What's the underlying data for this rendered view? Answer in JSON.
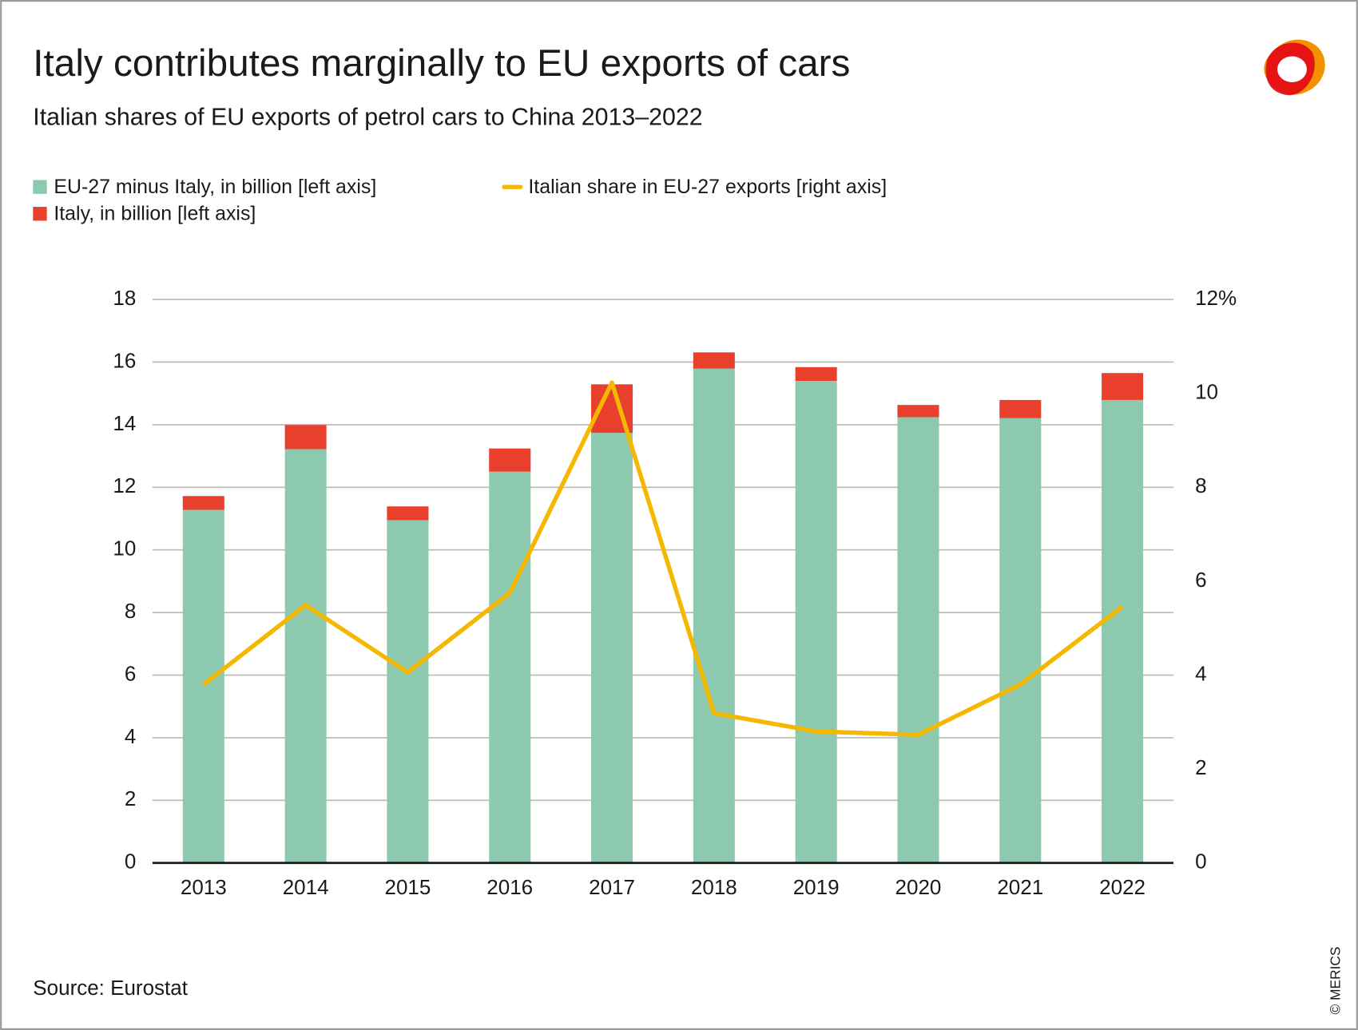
{
  "chart_data": {
    "type": "bar",
    "title": "Italy contributes marginally to EU exports of cars",
    "subtitle": "Italian shares of EU exports of petrol cars to China 2013–2022",
    "source": "Source: Eurostat",
    "copyright": "© MERICS",
    "stacked": true,
    "grid": true,
    "categories": [
      "2013",
      "2014",
      "2015",
      "2016",
      "2017",
      "2018",
      "2019",
      "2020",
      "2021",
      "2022"
    ],
    "series": [
      {
        "name": "EU-27 minus Italy, in billion [left axis]",
        "type": "bar",
        "color": "#8dc9ae",
        "values": [
          11.28,
          13.22,
          10.95,
          12.5,
          13.74,
          15.79,
          15.4,
          14.24,
          14.21,
          14.79
        ]
      },
      {
        "name": "Italy, in billion [left axis]",
        "type": "bar",
        "color": "#e8402c",
        "values": [
          0.44,
          0.77,
          0.44,
          0.74,
          1.55,
          0.52,
          0.44,
          0.39,
          0.58,
          0.86
        ]
      },
      {
        "name": "Italian share in EU-27 exports [right axis]",
        "type": "line",
        "color": "#f5b800",
        "axis": "y2",
        "values": [
          3.8,
          5.49,
          4.06,
          5.75,
          10.23,
          3.19,
          2.8,
          2.73,
          3.8,
          5.46
        ]
      }
    ],
    "ylim": [
      0,
      18
    ],
    "yticks": [
      0,
      2,
      4,
      6,
      8,
      10,
      12,
      14,
      16,
      18
    ],
    "y2lim": [
      0,
      12
    ],
    "y2ticks": [
      0,
      2,
      4,
      6,
      8,
      10,
      {
        "value": 12,
        "label": "12%"
      }
    ]
  }
}
